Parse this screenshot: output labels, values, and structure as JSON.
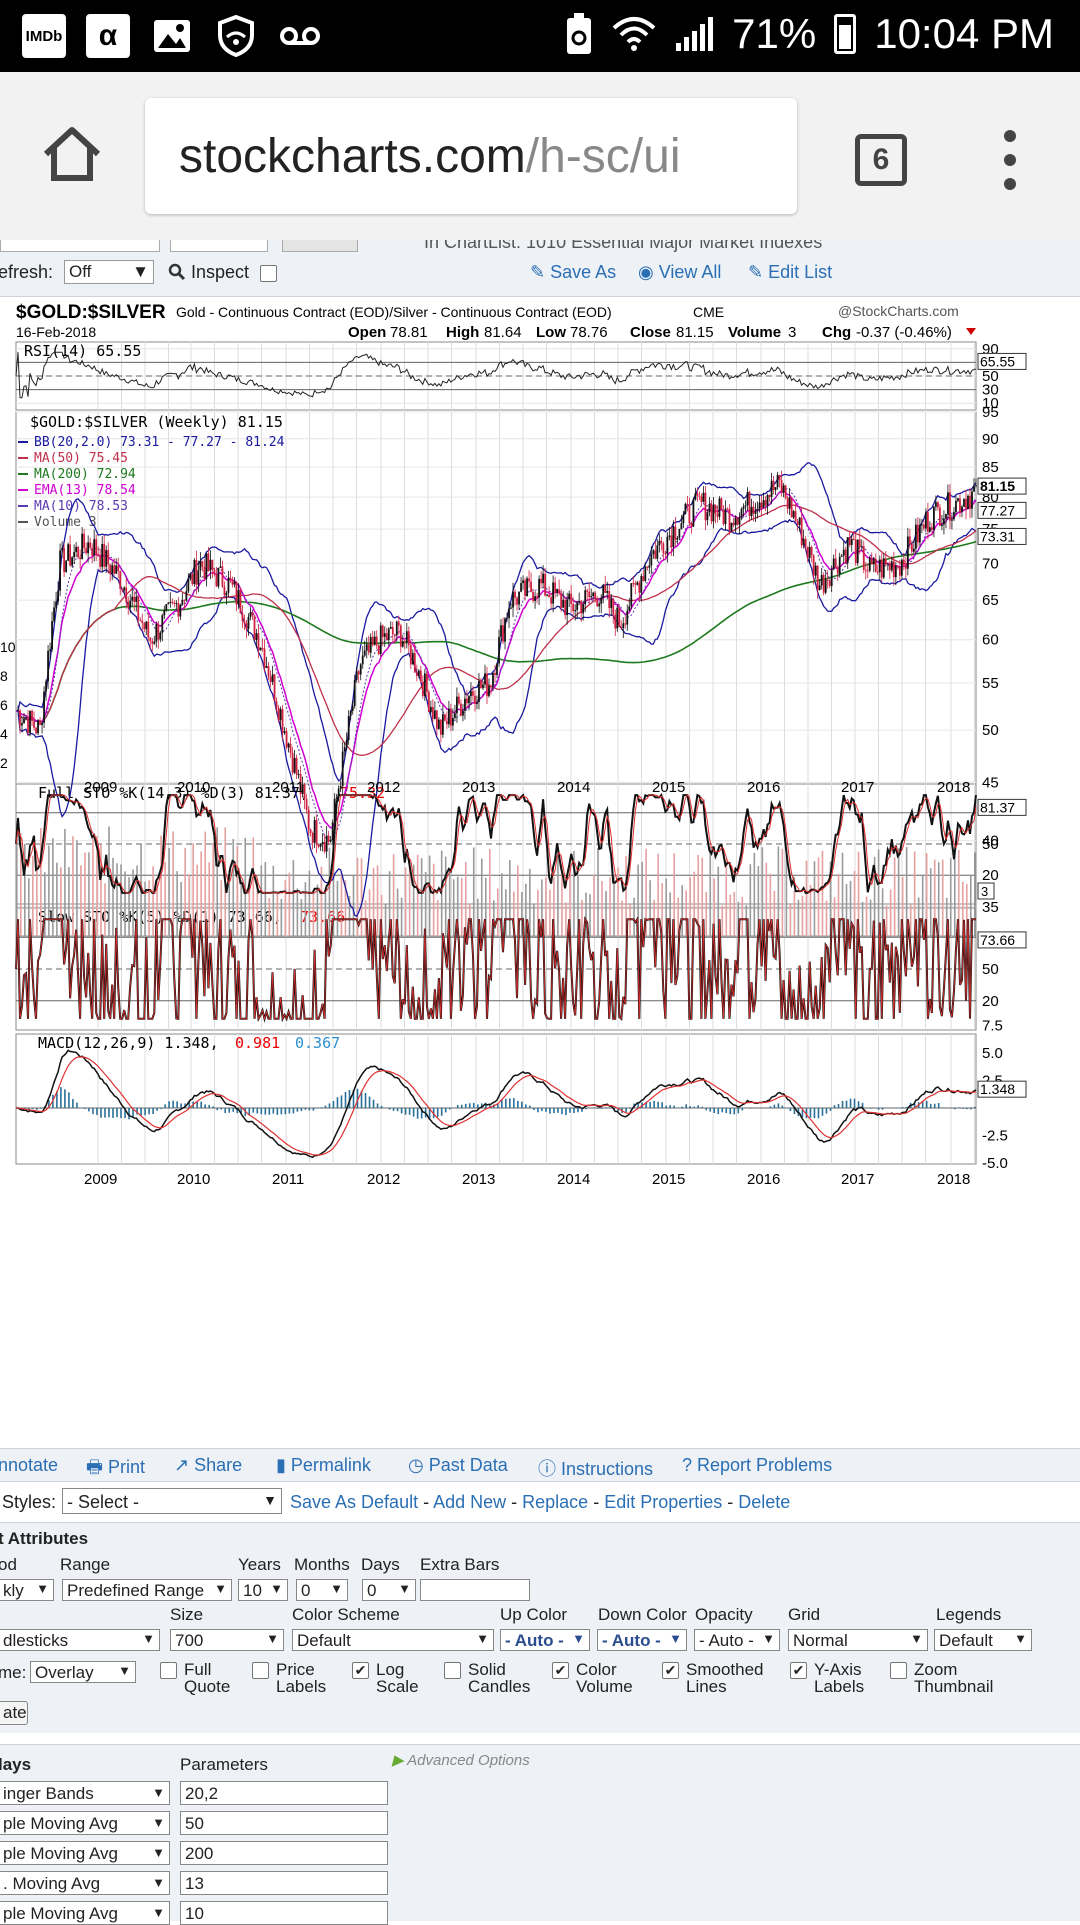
{
  "status_bar": {
    "icons": [
      "IMDb",
      "α",
      "image-icon",
      "shield-icon",
      "voicemail-icon"
    ],
    "battery": "71%",
    "time": "10:04 PM"
  },
  "browser": {
    "url_host": "stockcharts.com",
    "url_path": "/h-sc/ui",
    "tab_count": "6"
  },
  "toolbar": {
    "cut_text": "In ChartList:  1010 Essential Major Market Indexes",
    "refresh_label": "efresh:",
    "refresh_value": "Off",
    "inspect_label": "Inspect",
    "save_as": "Save As",
    "view_all": "View All",
    "edit_list": "Edit List"
  },
  "chart_header": {
    "symbol": "$GOLD:$SILVER",
    "description": "Gold - Continuous Contract (EOD)/Silver - Continuous Contract (EOD)",
    "exchange": "CME",
    "brand": "@StockCharts.com",
    "date": "16-Feb-2018",
    "open": "78.81",
    "high": "81.64",
    "low": "78.76",
    "close": "81.15",
    "volume": "3",
    "chg": "-0.37 (-0.46%)"
  },
  "panels": {
    "rsi": {
      "label": "RSI(14) 65.55",
      "value_tag": "65.55",
      "ticks": [
        "90",
        "70",
        "50",
        "30",
        "10"
      ]
    },
    "main": {
      "label": "$GOLD:$SILVER (Weekly) 81.15",
      "legend": [
        {
          "text": "BB(20,2.0) 73.31 - 77.27 - 81.24",
          "color": "#1a1aa0"
        },
        {
          "text": "MA(50) 75.45",
          "color": "#c0304a"
        },
        {
          "text": "MA(200) 72.94",
          "color": "#1f7a1f"
        },
        {
          "text": "EMA(13) 78.54",
          "color": "#d000d0"
        },
        {
          "text": "MA(10) 78.53",
          "color": "#5a3ab0"
        },
        {
          "text": "Volume 3",
          "color": "#555555"
        }
      ],
      "ticks": [
        "95",
        "90",
        "85",
        "80",
        "75",
        "70",
        "65",
        "60",
        "55",
        "50",
        "45",
        "40",
        "35"
      ],
      "left_ticks": [
        "10",
        "8",
        "6",
        "4",
        "2"
      ],
      "tags": [
        "81.15",
        "77.27",
        "73.31"
      ],
      "volume_tag": "3"
    },
    "years": [
      "2009",
      "2010",
      "2011",
      "2012",
      "2013",
      "2014",
      "2015",
      "2016",
      "2017",
      "2018"
    ],
    "full_sto": {
      "label": "Full STO %K(14,3) %D(3) 81.37,",
      "label_red": "75.32",
      "tag": "81.37",
      "ticks": [
        "50",
        "20"
      ]
    },
    "slow_sto": {
      "label": "Slow STO %K(5) %D(1) 73.66,",
      "label_red": "73.66",
      "tag": "73.66",
      "ticks": [
        "50",
        "20"
      ]
    },
    "macd": {
      "label": "MACD(12,26,9) 1.348,",
      "label_red": "0.981",
      "label_blue": "0.367",
      "tag": "1.348",
      "ticks": [
        "7.5",
        "5.0",
        "2.5",
        "-2.5",
        "-5.0"
      ]
    }
  },
  "bottom_links": [
    "nnotate",
    "Print",
    "Share",
    "Permalink",
    "Past Data",
    "Instructions",
    "Report Problems"
  ],
  "styles": {
    "label": "Styles:",
    "select": "- Select -",
    "links": [
      "Save As Default",
      "Add New",
      "Replace",
      "Edit Properties",
      "Delete"
    ]
  },
  "attributes": {
    "title": "t Attributes",
    "labels": {
      "period": "od",
      "range": "Range",
      "years": "Years",
      "months": "Months",
      "days": "Days",
      "extra_bars": "Extra Bars",
      "size": "Size",
      "color_scheme": "Color Scheme",
      "up_color": "Up Color",
      "down_color": "Down Color",
      "opacity": "Opacity",
      "grid": "Grid",
      "legends": "Legends"
    },
    "values": {
      "period": "kly",
      "range": "Predefined Range",
      "years": "10",
      "months": "0",
      "days": "0",
      "type": "dlesticks",
      "size": "700",
      "color_scheme": "Default",
      "up_color": "- Auto -",
      "down_color": "- Auto -",
      "opacity": "- Auto -",
      "grid": "Normal",
      "legends": "Default"
    },
    "volume_label": "me:",
    "volume_value": "Overlay",
    "checkboxes": [
      {
        "label": "Full Quote",
        "checked": false
      },
      {
        "label": "Price Labels",
        "checked": false
      },
      {
        "label": "Log Scale",
        "checked": true
      },
      {
        "label": "Solid Candles",
        "checked": false
      },
      {
        "label": "Color Volume",
        "checked": true
      },
      {
        "label": "Smoothed Lines",
        "checked": true
      },
      {
        "label": "Y-Axis Labels",
        "checked": true
      },
      {
        "label": "Zoom Thumbnail",
        "checked": false
      }
    ],
    "update_button": "ate"
  },
  "overlays": {
    "title": "lays",
    "params_label": "Parameters",
    "advanced": "Advanced Options",
    "rows": [
      {
        "name": "inger Bands",
        "params": "20,2"
      },
      {
        "name": "ple Moving Avg",
        "params": "50"
      },
      {
        "name": "ple Moving Avg",
        "params": "200"
      },
      {
        "name": ". Moving Avg",
        "params": "13"
      },
      {
        "name": "ple Moving Avg",
        "params": "10"
      }
    ]
  }
}
